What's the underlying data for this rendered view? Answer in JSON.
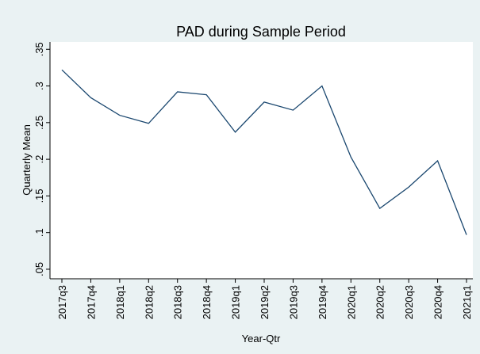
{
  "chart_data": {
    "type": "line",
    "title": "PAD during Sample Period",
    "x_label": "Year-Qtr",
    "y_label": "Quarterly Mean",
    "categories": [
      "2017q3",
      "2017q4",
      "2018q1",
      "2018q2",
      "2018q3",
      "2018q4",
      "2019q1",
      "2019q2",
      "2019q3",
      "2019q4",
      "2020q1",
      "2020q2",
      "2020q3",
      "2020q4",
      "2021q1"
    ],
    "values": [
      0.322,
      0.284,
      0.26,
      0.249,
      0.292,
      0.288,
      0.237,
      0.278,
      0.267,
      0.3,
      0.203,
      0.133,
      0.162,
      0.198,
      0.097
    ],
    "color": "#1a476f",
    "ylim": [
      0.037,
      0.36
    ],
    "yticks": [
      {
        "value": 0.05,
        "label": ".05"
      },
      {
        "value": 0.1,
        "label": ".1"
      },
      {
        "value": 0.15,
        "label": ".15"
      },
      {
        "value": 0.2,
        "label": ".2"
      },
      {
        "value": 0.25,
        "label": ".25"
      },
      {
        "value": 0.3,
        "label": ".3"
      },
      {
        "value": 0.35,
        "label": ".35"
      }
    ],
    "grid": false
  }
}
